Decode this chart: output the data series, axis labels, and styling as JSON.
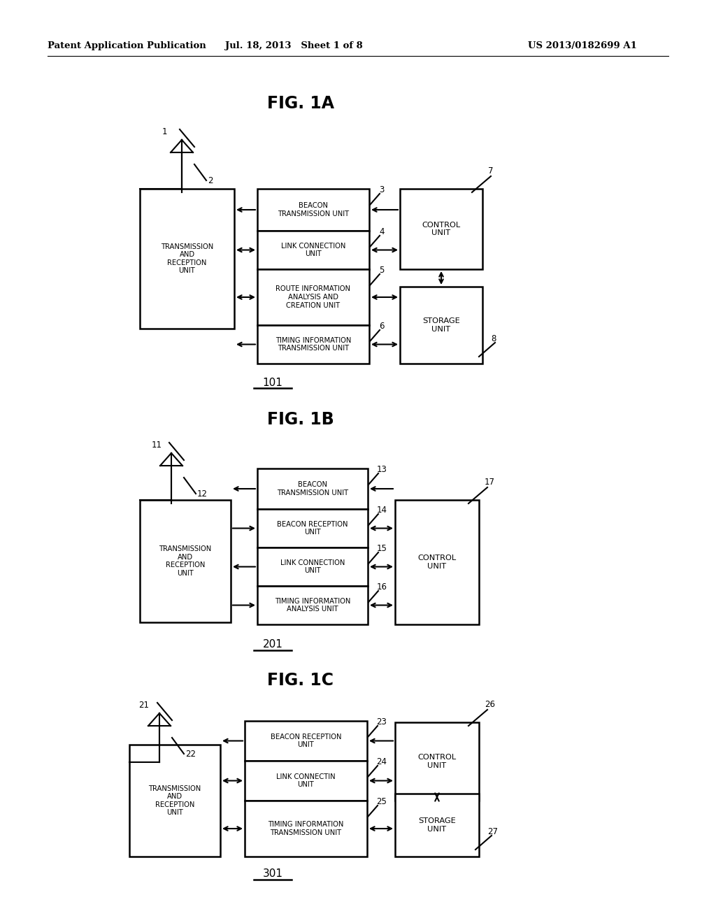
{
  "background_color": "#ffffff",
  "header_left": "Patent Application Publication",
  "header_center": "Jul. 18, 2013   Sheet 1 of 8",
  "header_right": "US 2013/0182699 A1"
}
